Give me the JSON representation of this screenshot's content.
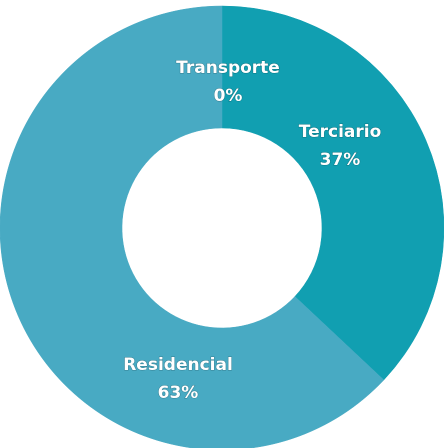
{
  "chart_data": {
    "type": "donut",
    "categories": [
      "Transporte",
      "Terciario",
      "Residencial"
    ],
    "values": [
      0,
      37,
      63
    ],
    "value_labels": [
      "0%",
      "37%",
      "63%"
    ],
    "colors": [
      "#2a8fb0",
      "#119fb1",
      "#48aac3"
    ]
  }
}
